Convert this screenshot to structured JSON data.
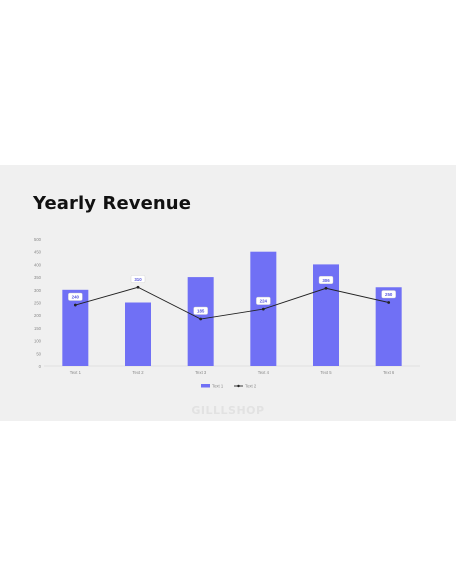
{
  "slide": {
    "title": "Yearly Revenue",
    "watermark": "GILLLSHOP"
  },
  "colors": {
    "bar": "#7070f5",
    "line": "#222222",
    "axis_text": "#888888",
    "label_text": "#5555dd"
  },
  "chart_data": {
    "type": "bar",
    "title": "Yearly Revenue",
    "xlabel": "",
    "ylabel": "",
    "categories": [
      "Text 1",
      "Text 2",
      "Text 3",
      "Text 4",
      "Text 5",
      "Text 6"
    ],
    "ylim": [
      0,
      500
    ],
    "yticks": [
      0,
      50,
      100,
      150,
      200,
      250,
      300,
      350,
      400,
      450,
      500
    ],
    "grid": false,
    "legend": "bottom",
    "series": [
      {
        "name": "Text 1",
        "type": "bar",
        "values": [
          300,
          250,
          350,
          450,
          400,
          310
        ]
      },
      {
        "name": "Text 2",
        "type": "line",
        "values": [
          240,
          310,
          185,
          224,
          306,
          250
        ],
        "labels": [
          "240",
          "310",
          "185",
          "224",
          "306",
          "250"
        ]
      }
    ]
  }
}
